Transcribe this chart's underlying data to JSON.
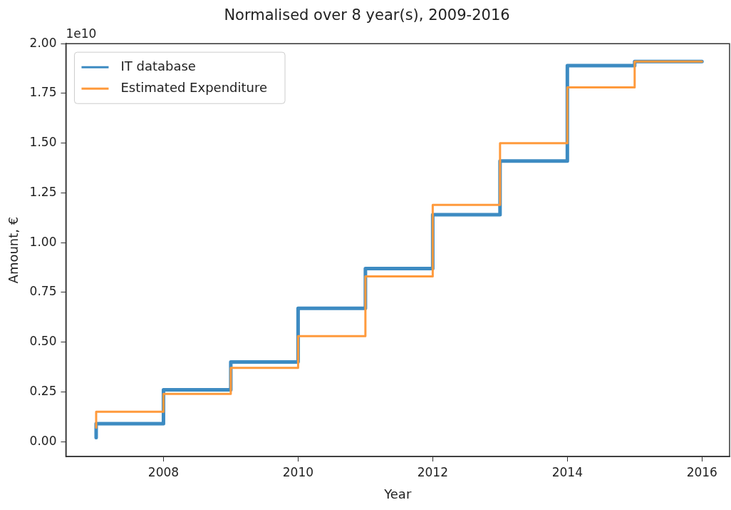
{
  "chart_data": {
    "type": "step",
    "title": "Normalised over 8 year(s), 2009-2016",
    "xlabel": "Year",
    "ylabel": "Amount, €",
    "annotations": [
      "1e10"
    ],
    "x": [
      2007,
      2008,
      2009,
      2010,
      2011,
      2012,
      2013,
      2014,
      2015,
      2016
    ],
    "series": [
      {
        "name": "IT database",
        "color": "#3d8bc2",
        "values": [
          0.02,
          0.09,
          0.26,
          0.4,
          0.67,
          0.87,
          1.14,
          1.41,
          1.89,
          1.91
        ]
      },
      {
        "name": "Estimated Expenditure",
        "color": "#ff9a3c",
        "values": [
          0.07,
          0.15,
          0.24,
          0.37,
          0.53,
          0.83,
          1.19,
          1.5,
          1.78,
          1.91
        ]
      }
    ],
    "xlim": [
      2006.55,
      2016.41
    ],
    "xticks": [
      2008,
      2010,
      2012,
      2014,
      2016
    ],
    "ylim": [
      -0.075,
      2.0
    ],
    "yticks": [
      {
        "value": 0,
        "label": "0.00"
      },
      {
        "value": 0.25,
        "label": "0.25"
      },
      {
        "value": 0.5,
        "label": "0.50"
      },
      {
        "value": 0.75,
        "label": "0.75"
      },
      {
        "value": 1,
        "label": "1.00"
      },
      {
        "value": 1.25,
        "label": "1.25"
      },
      {
        "value": 1.5,
        "label": "1.50"
      },
      {
        "value": 1.75,
        "label": "1.75"
      },
      {
        "value": 2,
        "label": "2.00"
      }
    ],
    "legend": "top left",
    "line_style": "solid"
  }
}
